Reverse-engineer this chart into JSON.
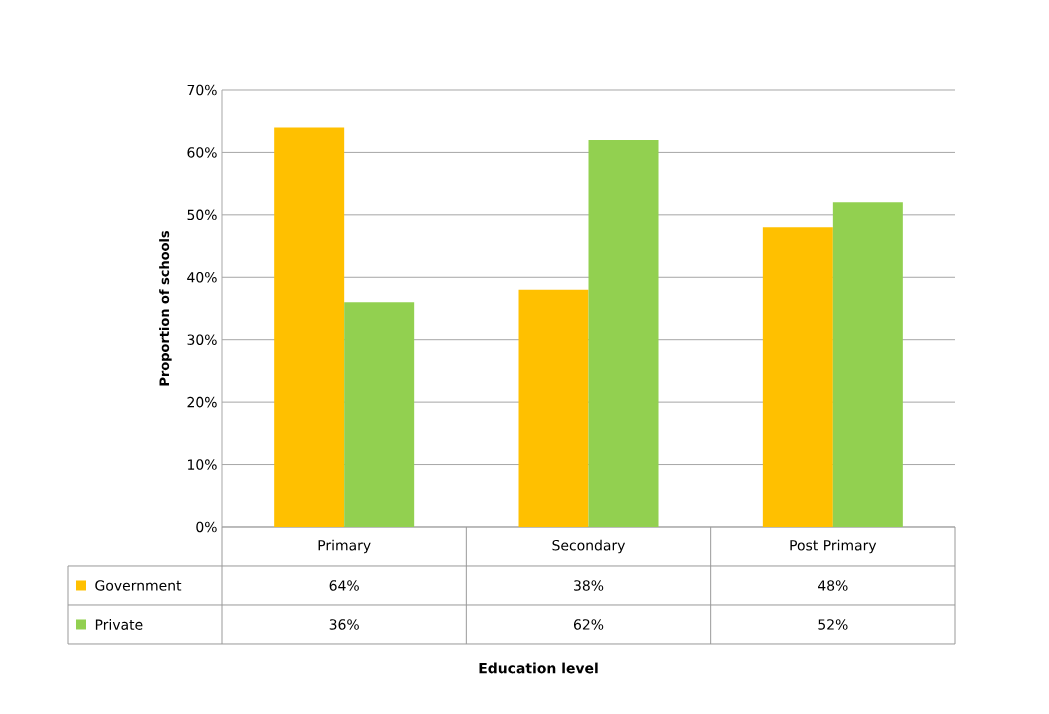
{
  "chart_data": {
    "type": "bar",
    "annotations": [
      "Education level"
    ],
    "ylabel": "Proportion of schools",
    "categories": [
      "Primary",
      "Secondary",
      "Post Primary"
    ],
    "series": [
      {
        "name": "Government",
        "color": "#ffc000",
        "values": [
          64,
          38,
          48
        ],
        "value_labels": [
          "64%",
          "38%",
          "48%"
        ]
      },
      {
        "name": "Private",
        "color": "#92d050",
        "values": [
          36,
          62,
          52
        ],
        "value_labels": [
          "36%",
          "62%",
          "52%"
        ]
      }
    ],
    "ylim": [
      0,
      70
    ],
    "yticks": [
      {
        "value": 0,
        "label": "0%"
      },
      {
        "value": 10,
        "label": "10%"
      },
      {
        "value": 20,
        "label": "20%"
      },
      {
        "value": 30,
        "label": "30%"
      },
      {
        "value": 40,
        "label": "40%"
      },
      {
        "value": 50,
        "label": "50%"
      },
      {
        "value": 60,
        "label": "60%"
      },
      {
        "value": 70,
        "label": "70%"
      }
    ],
    "grid": "y",
    "legend": "bottom"
  }
}
